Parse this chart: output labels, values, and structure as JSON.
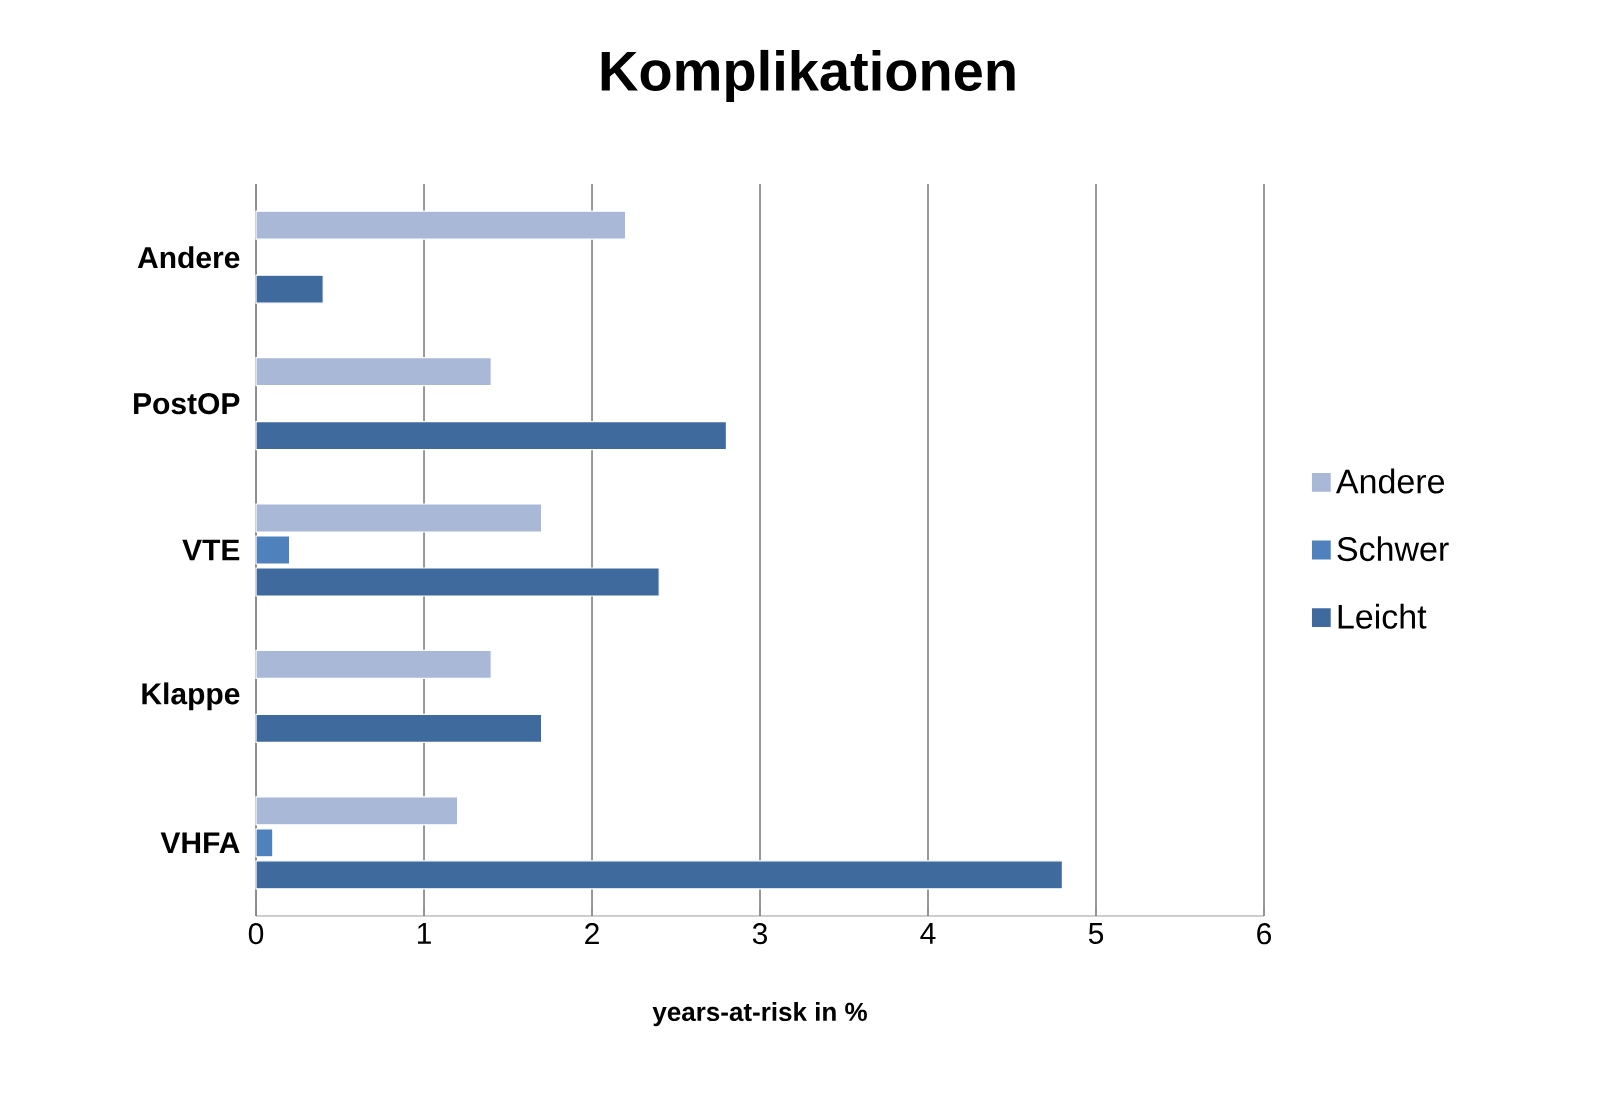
{
  "chart_data": {
    "type": "bar",
    "orientation": "horizontal",
    "title": "Komplikationen",
    "xlabel": "years-at-risk in %",
    "categories": [
      "Andere",
      "PostOP",
      "VTE",
      "Klappe",
      "VHFA"
    ],
    "series": [
      {
        "name": "Andere",
        "color": "#a9b8d7",
        "values": [
          2.2,
          1.4,
          1.7,
          1.4,
          1.2
        ]
      },
      {
        "name": "Schwer",
        "color": "#4f81bd",
        "values": [
          null,
          null,
          0.2,
          null,
          0.1
        ]
      },
      {
        "name": "Leicht",
        "color": "#3f6a9e",
        "values": [
          0.4,
          2.8,
          2.4,
          1.7,
          4.8
        ]
      }
    ],
    "xlim": [
      0,
      6
    ],
    "xticks": [
      0,
      1,
      2,
      3,
      4,
      5,
      6
    ],
    "grid": "x",
    "legend": "right"
  }
}
